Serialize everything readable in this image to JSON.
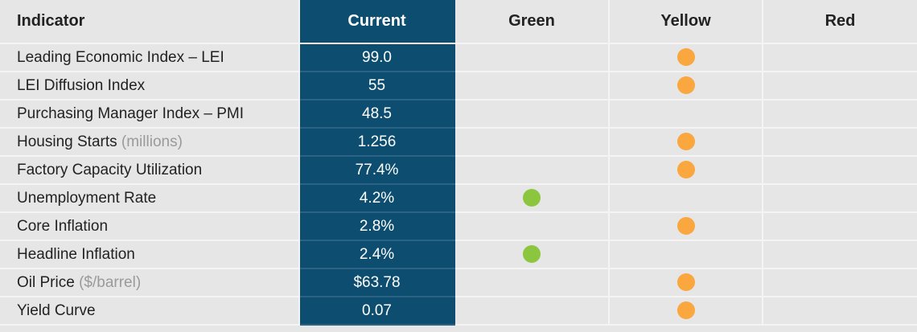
{
  "table": {
    "columns": [
      "Indicator",
      "Current",
      "Green",
      "Yellow",
      "Red"
    ],
    "signal_colors": {
      "Green": "#8cc63f",
      "Yellow": "#f9a73e",
      "Red": "#d9342b"
    },
    "rows": [
      {
        "indicator": "Leading Economic Index – LEI",
        "current": "99.0",
        "signal": "Yellow"
      },
      {
        "indicator": "LEI Diffusion Index",
        "current": "55",
        "signal": "Yellow"
      },
      {
        "indicator": "Purchasing Manager Index – PMI",
        "current": "48.5"
      },
      {
        "indicator": "Housing Starts",
        "unit": "(millions)",
        "current": "1.256",
        "signal": "Yellow"
      },
      {
        "indicator": "Factory Capacity Utilization",
        "current": "77.4%",
        "signal": "Yellow"
      },
      {
        "indicator": "Unemployment Rate",
        "current": "4.2%",
        "signal": "Green"
      },
      {
        "indicator": "Core Inflation",
        "current": "2.8%",
        "signal": "Yellow"
      },
      {
        "indicator": "Headline Inflation",
        "current": "2.4%",
        "signal": "Green"
      },
      {
        "indicator": "Oil Price",
        "unit": "($/barrel)",
        "current": "$63.78",
        "signal": "Yellow"
      },
      {
        "indicator": "Yield Curve",
        "current": "0.07",
        "signal": "Yellow"
      }
    ]
  }
}
